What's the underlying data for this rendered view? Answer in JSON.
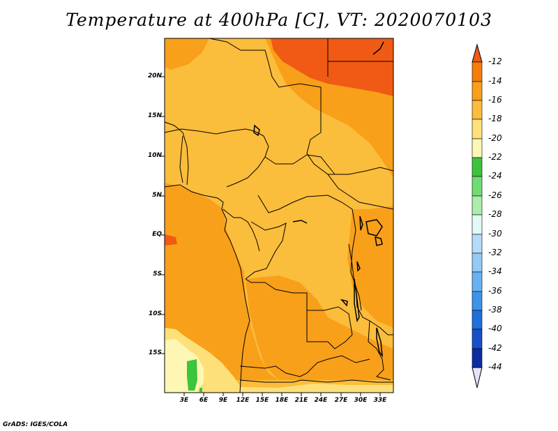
{
  "title": "Temperature at 400hPa [C], VT: 2020070103",
  "credit": "GrADS: IGES/COLA",
  "lat_labels": [
    "20N",
    "15N",
    "10N",
    "5N",
    "EQ",
    "5S",
    "10S",
    "15S"
  ],
  "lon_labels": [
    "3E",
    "6E",
    "9E",
    "12E",
    "15E",
    "18E",
    "21E",
    "24E",
    "27E",
    "30E",
    "33E"
  ],
  "colorbar": {
    "labels": [
      "-12",
      "-14",
      "-16",
      "-18",
      "-20",
      "-22",
      "-24",
      "-26",
      "-28",
      "-30",
      "-32",
      "-34",
      "-36",
      "-38",
      "-40",
      "-42",
      "-44"
    ],
    "colors": [
      "#f05a14",
      "#f47d0c",
      "#f8a01a",
      "#fbbd3c",
      "#fde07a",
      "#fef6b4",
      "#3cc43c",
      "#70dc70",
      "#acecac",
      "#e2f9f6",
      "#b4dcf8",
      "#94caf6",
      "#68b2f4",
      "#3c94e8",
      "#2070dc",
      "#1650c8",
      "#0c2ca0",
      "#080c70"
    ],
    "top_triangle_color": "#f05a14",
    "bottom_triangle_color": "#e2e2f8"
  },
  "map_colors": {
    "c12": "#f05a14",
    "c14": "#f8a01a",
    "c16": "#fbbd3c",
    "c18": "#fde07a",
    "c20": "#fef6b4",
    "c22": "#3cc43c"
  }
}
